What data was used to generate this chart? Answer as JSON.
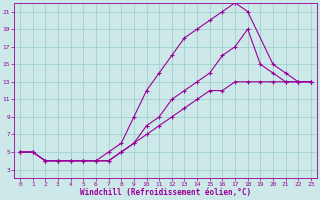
{
  "bg_color": "#cce8e8",
  "line_color": "#990099",
  "marker": "+",
  "markersize": 3,
  "linewidth": 0.8,
  "xlabel": "Windchill (Refroidissement éolien,°C)",
  "xlabel_color": "#990099",
  "xlim": [
    -0.5,
    23.5
  ],
  "ylim": [
    2,
    22
  ],
  "xticks": [
    0,
    1,
    2,
    3,
    4,
    5,
    6,
    7,
    8,
    9,
    10,
    11,
    12,
    13,
    14,
    15,
    16,
    17,
    18,
    19,
    20,
    21,
    22,
    23
  ],
  "yticks": [
    3,
    5,
    7,
    9,
    11,
    13,
    15,
    17,
    19,
    21
  ],
  "grid_color": "#99cccc",
  "tick_color": "#990099",
  "curve1_x": [
    0,
    1,
    2,
    3,
    4,
    5,
    6,
    7,
    8,
    9,
    10,
    11,
    12,
    13,
    14,
    15,
    16,
    17,
    18,
    20,
    21,
    22,
    23
  ],
  "curve1_y": [
    5,
    5,
    4,
    4,
    4,
    4,
    4,
    5,
    6,
    9,
    12,
    14,
    16,
    18,
    19,
    20,
    21,
    22,
    21,
    15,
    14,
    13,
    13
  ],
  "curve2_x": [
    0,
    1,
    2,
    3,
    4,
    5,
    6,
    7,
    8,
    9,
    10,
    11,
    12,
    13,
    14,
    15,
    16,
    17,
    18,
    19,
    20,
    21,
    22,
    23
  ],
  "curve2_y": [
    5,
    5,
    4,
    4,
    4,
    4,
    4,
    4,
    5,
    6,
    8,
    9,
    11,
    12,
    13,
    14,
    16,
    17,
    19,
    15,
    14,
    13,
    13,
    13
  ],
  "curve3_x": [
    0,
    1,
    2,
    3,
    4,
    5,
    6,
    7,
    8,
    9,
    10,
    11,
    12,
    13,
    14,
    15,
    16,
    17,
    18,
    19,
    20,
    21,
    22,
    23
  ],
  "curve3_y": [
    5,
    5,
    4,
    4,
    4,
    4,
    4,
    4,
    5,
    6,
    7,
    8,
    9,
    10,
    11,
    12,
    12,
    13,
    13,
    13,
    13,
    13,
    13,
    13
  ]
}
